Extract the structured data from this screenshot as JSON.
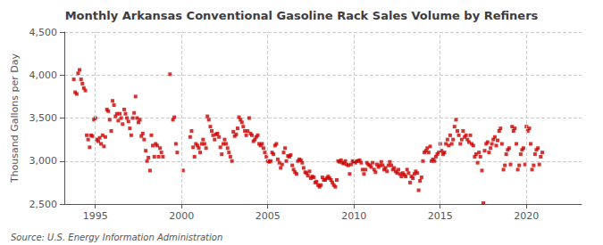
{
  "chart_data": {
    "type": "scatter",
    "title": "Monthly Arkansas Conventional Gasoline Rack Sales Volume by Refiners",
    "ylabel": "Thousand Gallons per Day",
    "annotations": [
      "Source: U.S. Energy Information Administration"
    ],
    "color": "#CC0000",
    "marker": "square",
    "grid": true,
    "xlim": [
      1993.2,
      2023.2
    ],
    "xticks": [
      1995,
      2000,
      2005,
      2010,
      2015,
      2020
    ],
    "ylim": [
      2500,
      4500
    ],
    "yticks": [
      {
        "value": 2500,
        "label": "2,500"
      },
      {
        "value": 3000,
        "label": "3,000"
      },
      {
        "value": 3500,
        "label": "3,500"
      },
      {
        "value": 4000,
        "label": "4,000"
      },
      {
        "value": 4500,
        "label": "4,500"
      }
    ],
    "x": [
      1993.75,
      1993.83,
      1993.92,
      1994.0,
      1994.08,
      1994.17,
      1994.25,
      1994.33,
      1994.42,
      1994.5,
      1994.58,
      1994.67,
      1994.75,
      1994.83,
      1994.92,
      1995.0,
      1995.08,
      1995.17,
      1995.25,
      1995.33,
      1995.42,
      1995.5,
      1995.58,
      1995.67,
      1995.75,
      1995.83,
      1995.92,
      1996.0,
      1996.08,
      1996.17,
      1996.25,
      1996.33,
      1996.42,
      1996.5,
      1996.58,
      1996.67,
      1996.75,
      1996.83,
      1996.92,
      1997.0,
      1997.08,
      1997.17,
      1997.25,
      1997.33,
      1997.42,
      1997.5,
      1997.58,
      1997.67,
      1997.75,
      1997.83,
      1997.92,
      1998.0,
      1998.08,
      1998.17,
      1998.25,
      1998.33,
      1998.42,
      1998.5,
      1998.58,
      1998.67,
      1998.75,
      1998.83,
      1998.92,
      1999.33,
      1999.5,
      1999.58,
      1999.67,
      1999.75,
      2000.08,
      2000.5,
      2000.58,
      2000.67,
      2000.75,
      2000.83,
      2000.92,
      2001.0,
      2001.08,
      2001.17,
      2001.25,
      2001.33,
      2001.42,
      2001.5,
      2001.58,
      2001.67,
      2001.75,
      2001.83,
      2001.92,
      2002.0,
      2002.08,
      2002.17,
      2002.25,
      2002.33,
      2002.42,
      2002.5,
      2002.58,
      2002.67,
      2002.75,
      2002.83,
      2002.92,
      2003.0,
      2003.08,
      2003.17,
      2003.25,
      2003.33,
      2003.42,
      2003.5,
      2003.58,
      2003.67,
      2003.75,
      2003.83,
      2003.92,
      2004.0,
      2004.08,
      2004.17,
      2004.25,
      2004.33,
      2004.42,
      2004.5,
      2004.58,
      2004.67,
      2004.75,
      2004.83,
      2004.92,
      2005.0,
      2005.08,
      2005.17,
      2005.25,
      2005.33,
      2005.42,
      2005.5,
      2005.58,
      2005.67,
      2005.75,
      2005.83,
      2005.92,
      2006.0,
      2006.08,
      2006.17,
      2006.25,
      2006.33,
      2006.42,
      2006.5,
      2006.58,
      2006.67,
      2006.75,
      2006.83,
      2006.92,
      2007.0,
      2007.08,
      2007.17,
      2007.25,
      2007.33,
      2007.42,
      2007.5,
      2007.58,
      2007.67,
      2007.75,
      2007.83,
      2007.92,
      2008.0,
      2008.08,
      2008.17,
      2008.25,
      2008.33,
      2008.42,
      2008.5,
      2008.58,
      2008.67,
      2008.75,
      2008.83,
      2008.92,
      2009.0,
      2009.08,
      2009.17,
      2009.25,
      2009.33,
      2009.42,
      2009.5,
      2009.58,
      2009.67,
      2009.75,
      2009.83,
      2009.92,
      2010.0,
      2010.08,
      2010.17,
      2010.25,
      2010.33,
      2010.42,
      2010.5,
      2010.58,
      2010.67,
      2010.75,
      2010.83,
      2010.92,
      2011.0,
      2011.08,
      2011.17,
      2011.25,
      2011.33,
      2011.42,
      2011.5,
      2011.58,
      2011.67,
      2011.75,
      2011.83,
      2011.92,
      2012.0,
      2012.08,
      2012.17,
      2012.25,
      2012.33,
      2012.42,
      2012.5,
      2012.58,
      2012.67,
      2012.75,
      2012.83,
      2012.92,
      2013.0,
      2013.08,
      2013.17,
      2013.25,
      2013.33,
      2013.42,
      2013.5,
      2013.58,
      2013.67,
      2013.75,
      2013.83,
      2013.92,
      2014.0,
      2014.08,
      2014.17,
      2014.25,
      2014.33,
      2014.42,
      2014.5,
      2014.58,
      2014.67,
      2014.75,
      2014.83,
      2014.92,
      2015.0,
      2015.08,
      2015.17,
      2015.25,
      2015.33,
      2015.42,
      2015.5,
      2015.58,
      2015.67,
      2015.75,
      2015.83,
      2015.92,
      2016.0,
      2016.08,
      2016.17,
      2016.25,
      2016.33,
      2016.42,
      2016.5,
      2016.58,
      2016.67,
      2016.75,
      2016.83,
      2016.92,
      2017.0,
      2017.08,
      2017.17,
      2017.25,
      2017.33,
      2017.42,
      2017.5,
      2017.58,
      2017.67,
      2017.75,
      2017.83,
      2017.92,
      2018.0,
      2018.08,
      2018.17,
      2018.25,
      2018.33,
      2018.42,
      2018.5,
      2018.58,
      2018.67,
      2018.75,
      2018.83,
      2018.92,
      2019.0,
      2019.08,
      2019.17,
      2019.25,
      2019.33,
      2019.42,
      2019.5,
      2019.58,
      2019.67,
      2019.75,
      2019.83,
      2019.92,
      2020.0,
      2020.08,
      2020.17,
      2020.25,
      2020.33,
      2020.42,
      2020.5,
      2020.58,
      2020.67,
      2020.75,
      2020.83,
      2020.92
    ],
    "values": [
      3950,
      3800,
      3780,
      4020,
      4060,
      3950,
      3900,
      3850,
      3820,
      3300,
      3250,
      3160,
      3300,
      3290,
      3480,
      3500,
      3250,
      3230,
      3270,
      3200,
      3300,
      3170,
      3280,
      3600,
      3580,
      3480,
      3350,
      3700,
      3650,
      3520,
      3550,
      3470,
      3550,
      3500,
      3430,
      3600,
      3550,
      3500,
      3460,
      3380,
      3300,
      3500,
      3560,
      3750,
      3500,
      3450,
      3480,
      3290,
      3320,
      3250,
      3120,
      3000,
      3040,
      2890,
      3300,
      3180,
      3050,
      3200,
      3180,
      3050,
      3150,
      3100,
      3050,
      4010,
      3480,
      3510,
      3200,
      3100,
      2890,
      3280,
      3350,
      3160,
      3050,
      3200,
      3180,
      3150,
      3100,
      3200,
      3250,
      3200,
      3150,
      3520,
      3480,
      3400,
      3350,
      3300,
      3250,
      3310,
      3320,
      3280,
      3160,
      3080,
      3200,
      3250,
      3200,
      3150,
      3100,
      3050,
      3000,
      3340,
      3290,
      3310,
      3380,
      3510,
      3480,
      3450,
      3400,
      3350,
      3300,
      3350,
      3500,
      3320,
      3300,
      3230,
      3250,
      3280,
      3300,
      3200,
      3180,
      3200,
      3150,
      3100,
      3050,
      3000,
      2990,
      3000,
      3100,
      3080,
      3180,
      3200,
      3020,
      2980,
      2920,
      2960,
      3100,
      3150,
      3000,
      3060,
      3050,
      3070,
      2950,
      2900,
      2870,
      2850,
      3000,
      3020,
      3010,
      2980,
      2920,
      2870,
      2860,
      2830,
      2880,
      2800,
      2820,
      2810,
      2750,
      2760,
      2720,
      2700,
      2720,
      2810,
      2780,
      2780,
      2800,
      2820,
      2800,
      2780,
      2750,
      2720,
      2700,
      2780,
      3000,
      2990,
      3010,
      2980,
      2970,
      3000,
      2960,
      2950,
      2850,
      2960,
      3000,
      2990,
      2980,
      3000,
      3000,
      3010,
      2980,
      2900,
      2850,
      2900,
      2980,
      2960,
      2950,
      2930,
      2980,
      2900,
      2870,
      2960,
      2930,
      2950,
      2990,
      2950,
      2900,
      2920,
      2880,
      2950,
      2990,
      2950,
      2900,
      2920,
      2880,
      2860,
      2900,
      2850,
      2820,
      2860,
      2840,
      2820,
      2900,
      2860,
      2750,
      2820,
      2800,
      2850,
      2880,
      2860,
      2660,
      2770,
      2810,
      3000,
      3100,
      3120,
      3150,
      3100,
      3170,
      3000,
      3020,
      3000,
      3050,
      3080,
      3100,
      3200,
      3120,
      3080,
      3100,
      3200,
      3250,
      3180,
      3300,
      3200,
      3250,
      3400,
      3480,
      3350,
      3300,
      3200,
      3250,
      3350,
      3280,
      3300,
      3250,
      3220,
      3300,
      3200,
      3180,
      3050,
      3080,
      2980,
      3100,
      3050,
      2890,
      2510,
      3120,
      3200,
      3220,
      3100,
      3150,
      3200,
      3250,
      3280,
      3180,
      3240,
      3350,
      3380,
      3200,
      2900,
      2950,
      3080,
      3130,
      3150,
      2960,
      3400,
      3350,
      3380,
      3200,
      2900,
      2950,
      3080,
      3130,
      3150,
      2960,
      3400,
      3350,
      3380,
      3200,
      2900,
      2950,
      3080,
      3130,
      3150,
      2960,
      3050,
      3100
    ]
  }
}
